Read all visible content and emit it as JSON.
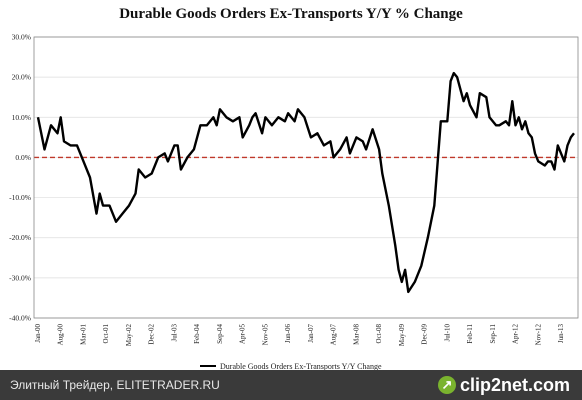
{
  "chart_data": {
    "type": "line",
    "title": "Durable Goods Orders Ex-Transports Y/Y % Change",
    "ylim": [
      -40,
      30
    ],
    "y_ticks": [
      "30.0%",
      "20.0%",
      "10.0%",
      "0.0%",
      "-10.0%",
      "-20.0%",
      "-30.0%",
      "-40.0%"
    ],
    "y_tick_values": [
      30,
      20,
      10,
      0,
      -10,
      -20,
      -30,
      -40
    ],
    "x_tick_labels": [
      "Jan-00",
      "Aug-00",
      "Mar-01",
      "Oct-01",
      "May-02",
      "Dec-02",
      "Jul-03",
      "Feb-04",
      "Sep-04",
      "Apr-05",
      "Nov-05",
      "Jun-06",
      "Jan-07",
      "Aug-07",
      "Mar-08",
      "Oct-08",
      "May-09",
      "Dec-09",
      "Jul-10",
      "Feb-11",
      "Sep-11",
      "Apr-12",
      "Nov-12",
      "Jun-13"
    ],
    "x_tick_index": [
      0,
      7,
      14,
      21,
      28,
      35,
      42,
      49,
      56,
      63,
      70,
      77,
      84,
      91,
      98,
      105,
      112,
      119,
      126,
      133,
      140,
      147,
      154,
      161
    ],
    "x_count": 166,
    "grid": true,
    "legend_position": "bottom",
    "zero_line": {
      "value": 0,
      "style": "dashed",
      "color": "#c0392b"
    },
    "series": [
      {
        "name": "Durable Goods Orders Ex-Transports Y/Y Change",
        "color": "#000000",
        "points": [
          [
            0,
            10
          ],
          [
            2,
            2
          ],
          [
            4,
            8
          ],
          [
            6,
            6
          ],
          [
            7,
            10
          ],
          [
            8,
            4
          ],
          [
            10,
            3
          ],
          [
            12,
            3
          ],
          [
            14,
            -1
          ],
          [
            16,
            -5
          ],
          [
            18,
            -14
          ],
          [
            19,
            -9
          ],
          [
            20,
            -12
          ],
          [
            22,
            -12
          ],
          [
            24,
            -16
          ],
          [
            26,
            -14
          ],
          [
            28,
            -12
          ],
          [
            30,
            -9
          ],
          [
            31,
            -3
          ],
          [
            33,
            -5
          ],
          [
            35,
            -4
          ],
          [
            37,
            0
          ],
          [
            39,
            1
          ],
          [
            40,
            -1
          ],
          [
            42,
            3
          ],
          [
            43,
            3
          ],
          [
            44,
            -3
          ],
          [
            46,
            0
          ],
          [
            48,
            2
          ],
          [
            50,
            8
          ],
          [
            52,
            8
          ],
          [
            54,
            10
          ],
          [
            55,
            8
          ],
          [
            56,
            12
          ],
          [
            58,
            10
          ],
          [
            60,
            9
          ],
          [
            62,
            10
          ],
          [
            63,
            5
          ],
          [
            65,
            8
          ],
          [
            66,
            10
          ],
          [
            67,
            11
          ],
          [
            69,
            6
          ],
          [
            70,
            10
          ],
          [
            72,
            8
          ],
          [
            74,
            10
          ],
          [
            76,
            9
          ],
          [
            77,
            11
          ],
          [
            79,
            9
          ],
          [
            80,
            12
          ],
          [
            82,
            10
          ],
          [
            84,
            5
          ],
          [
            86,
            6
          ],
          [
            88,
            3
          ],
          [
            90,
            4
          ],
          [
            91,
            0
          ],
          [
            93,
            2
          ],
          [
            95,
            5
          ],
          [
            96,
            1
          ],
          [
            98,
            5
          ],
          [
            100,
            4
          ],
          [
            101,
            2
          ],
          [
            103,
            7
          ],
          [
            105,
            2
          ],
          [
            106,
            -4
          ],
          [
            108,
            -12
          ],
          [
            110,
            -22
          ],
          [
            111,
            -28
          ],
          [
            112,
            -31
          ],
          [
            113,
            -28
          ],
          [
            114,
            -33.5
          ],
          [
            116,
            -31
          ],
          [
            118,
            -27
          ],
          [
            120,
            -20
          ],
          [
            122,
            -12
          ],
          [
            124,
            9
          ],
          [
            126,
            9
          ],
          [
            127,
            19
          ],
          [
            128,
            21
          ],
          [
            129,
            20
          ],
          [
            131,
            14
          ],
          [
            132,
            16
          ],
          [
            133,
            13
          ],
          [
            135,
            10
          ],
          [
            136,
            16
          ],
          [
            138,
            15
          ],
          [
            139,
            10
          ],
          [
            141,
            8
          ],
          [
            142,
            8
          ],
          [
            144,
            9
          ],
          [
            145,
            8
          ],
          [
            146,
            14
          ],
          [
            147,
            8
          ],
          [
            148,
            10
          ],
          [
            149,
            7
          ],
          [
            150,
            9
          ],
          [
            151,
            6
          ],
          [
            152,
            5
          ],
          [
            153,
            1
          ],
          [
            154,
            -1
          ],
          [
            156,
            -2
          ],
          [
            157,
            -1
          ],
          [
            158,
            -1
          ],
          [
            159,
            -3
          ],
          [
            160,
            3
          ],
          [
            162,
            -1
          ],
          [
            163,
            3
          ],
          [
            164,
            5
          ],
          [
            165,
            6
          ]
        ]
      }
    ]
  },
  "legend": {
    "label": "Durable Goods Orders Ex-Transports Y/Y Change"
  },
  "footer": {
    "text": "Элитный Трейдер, ELITETRADER.RU",
    "logo_icon": "↗",
    "logo_text": "clip2net.com"
  }
}
